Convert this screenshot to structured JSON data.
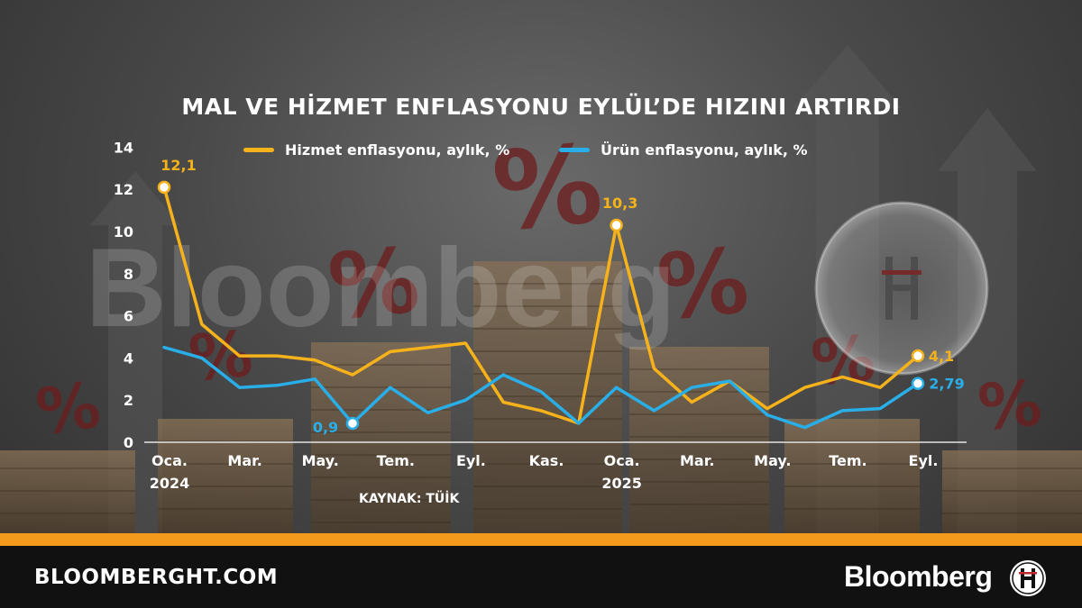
{
  "chart_data": {
    "type": "line",
    "title": "MAL VE HİZMET ENFLASYONU EYLÜL’DE HIZINI ARTIRDI",
    "x": [
      "2024-01",
      "2024-02",
      "2024-03",
      "2024-04",
      "2024-05",
      "2024-06",
      "2024-07",
      "2024-08",
      "2024-09",
      "2024-10",
      "2024-11",
      "2024-12",
      "2025-01",
      "2025-02",
      "2025-03",
      "2025-04",
      "2025-05",
      "2025-06",
      "2025-07",
      "2025-08",
      "2025-09"
    ],
    "x_ticks": [
      {
        "index": 0,
        "label": "Oca.",
        "year": "2024"
      },
      {
        "index": 2,
        "label": "Mar.",
        "year": ""
      },
      {
        "index": 4,
        "label": "May.",
        "year": ""
      },
      {
        "index": 6,
        "label": "Tem.",
        "year": ""
      },
      {
        "index": 8,
        "label": "Eyl.",
        "year": ""
      },
      {
        "index": 10,
        "label": "Kas.",
        "year": ""
      },
      {
        "index": 12,
        "label": "Oca.",
        "year": "2025"
      },
      {
        "index": 14,
        "label": "Mar.",
        "year": ""
      },
      {
        "index": 16,
        "label": "May.",
        "year": ""
      },
      {
        "index": 18,
        "label": "Tem.",
        "year": ""
      },
      {
        "index": 20,
        "label": "Eyl.",
        "year": ""
      }
    ],
    "ylim": [
      0,
      14
    ],
    "yticks": [
      0,
      2,
      4,
      6,
      8,
      10,
      12,
      14
    ],
    "series": [
      {
        "name": "Hizmet enflasyonu, aylık, %",
        "color": "#f5b21b",
        "values": [
          12.1,
          5.6,
          4.1,
          4.1,
          3.9,
          3.2,
          4.3,
          4.5,
          4.7,
          1.9,
          1.5,
          0.9,
          10.3,
          3.5,
          1.9,
          2.9,
          1.6,
          2.6,
          3.1,
          2.6,
          4.1
        ],
        "labels": [
          {
            "index": 0,
            "text": "12,1"
          },
          {
            "index": 12,
            "text": "10,3"
          },
          {
            "index": 20,
            "text": "4,1"
          }
        ]
      },
      {
        "name": "Ürün enflasyonu, aylık, %",
        "color": "#29aee8",
        "values": [
          4.5,
          4.0,
          2.6,
          2.7,
          3.0,
          0.9,
          2.6,
          1.4,
          2.0,
          3.2,
          2.4,
          0.9,
          2.6,
          1.5,
          2.6,
          2.9,
          1.3,
          0.7,
          1.5,
          1.6,
          2.79
        ],
        "labels": [
          {
            "index": 5,
            "text": "0,9"
          },
          {
            "index": 20,
            "text": "2,79"
          }
        ]
      }
    ],
    "grid": false,
    "legend_position": "top"
  },
  "source": "KAYNAK: TÜİK",
  "footer": {
    "site": "BLOOMBERGHT.COM",
    "brand": "Bloomberg"
  },
  "watermark": "Bloomberg",
  "colors": {
    "accent_bar": "#f39a1c",
    "footer_bg": "#111111"
  }
}
